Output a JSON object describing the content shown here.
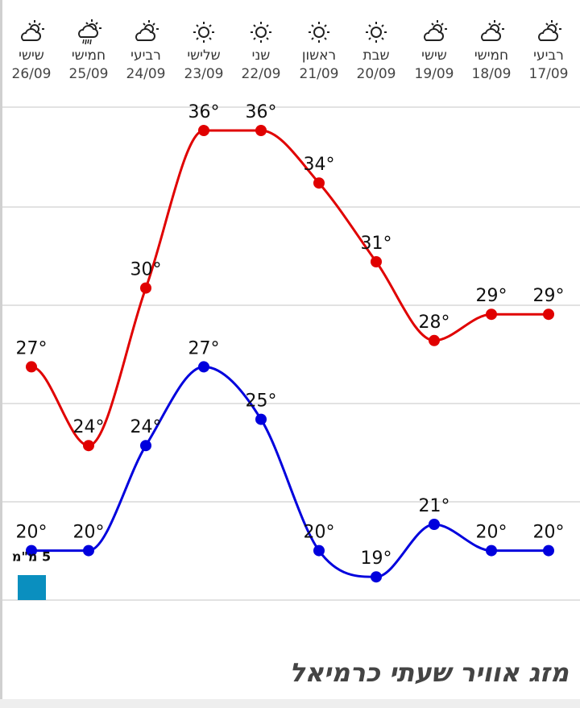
{
  "title": "מזג אוויר שעתי כרמיאל",
  "colors": {
    "high": "#e00000",
    "low": "#0000dd",
    "rain": "#0a8fbf",
    "grid": "#e2e2e2"
  },
  "days": [
    {
      "name": "שישי",
      "date": "26/09",
      "icon": "partly-cloudy-icon",
      "high": 27,
      "low": 20,
      "rain": "5 מ\"מ"
    },
    {
      "name": "חמישי",
      "date": "25/09",
      "icon": "rain-icon",
      "high": 24,
      "low": 20
    },
    {
      "name": "רביעי",
      "date": "24/09",
      "icon": "partly-cloudy-icon",
      "high": 30,
      "low": 24
    },
    {
      "name": "שלישי",
      "date": "23/09",
      "icon": "sun-icon",
      "high": 36,
      "low": 27
    },
    {
      "name": "שני",
      "date": "22/09",
      "icon": "sun-icon",
      "high": 36,
      "low": 25
    },
    {
      "name": "ראשון",
      "date": "21/09",
      "icon": "sun-icon",
      "high": 34,
      "low": 20
    },
    {
      "name": "שבת",
      "date": "20/09",
      "icon": "sun-icon",
      "high": 31,
      "low": 19
    },
    {
      "name": "שישי",
      "date": "19/09",
      "icon": "partly-cloudy-icon",
      "high": 28,
      "low": 21
    },
    {
      "name": "חמישי",
      "date": "18/09",
      "icon": "partly-cloudy-icon",
      "high": 29,
      "low": 20
    },
    {
      "name": "רביעי",
      "date": "17/09",
      "icon": "partly-cloudy-icon",
      "high": 29,
      "low": 20
    }
  ]
}
